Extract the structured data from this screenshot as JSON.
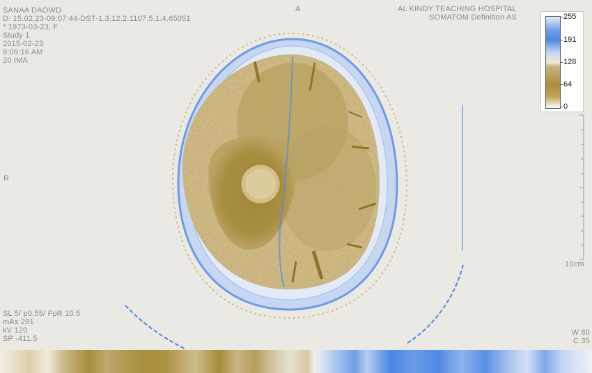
{
  "patient": {
    "name": "SANAA DAOWD",
    "id": " D: 15.02.23-09:07:44-DST-1.3.12.2.1107.5.1.4.65051",
    "dob": "* 1973-03-23, F",
    "study": "Study 1",
    "date": "2015-02-23",
    "time": "9:09:16 AM",
    "image_no": "20 IMA"
  },
  "institution": {
    "hospital": "AL KINDY TEACHING HOSPITAL",
    "scanner": "SOMATOM Definition AS"
  },
  "orientation": {
    "top": "A",
    "left": "R"
  },
  "acquisition": {
    "slice": "SL 5/ p0.55/ FpR 10.5",
    "mas": "mAs 291",
    "kv": "kV 120",
    "sp": "SP -411.5"
  },
  "window": {
    "width": "W 80",
    "center": "C 35"
  },
  "scale": {
    "label": "10cm"
  },
  "colorbar": {
    "ticks": [
      "255",
      "191",
      "128",
      "64",
      "0"
    ],
    "colors": {
      "low": "#ffffff",
      "mid_low": "#a88f40",
      "mid": "#efe7d5",
      "high": "#4f87e3"
    }
  }
}
